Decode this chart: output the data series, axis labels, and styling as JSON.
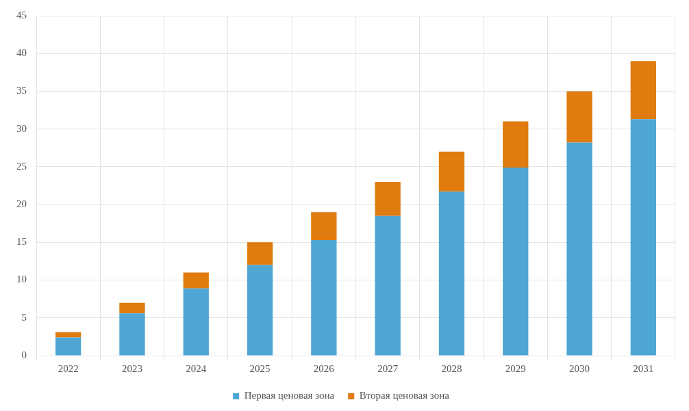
{
  "chart_data": {
    "type": "bar",
    "stacked": true,
    "categories": [
      "2022",
      "2023",
      "2024",
      "2025",
      "2026",
      "2027",
      "2028",
      "2029",
      "2030",
      "2031"
    ],
    "series": [
      {
        "name": "Первая ценовая зона",
        "color": "#4ea6d4",
        "values": [
          2.4,
          5.6,
          8.9,
          12.0,
          15.3,
          18.5,
          21.7,
          24.9,
          28.2,
          31.3
        ]
      },
      {
        "name": "Вторая ценовая зона",
        "color": "#e07b10",
        "values": [
          0.7,
          1.4,
          2.1,
          3.0,
          3.7,
          4.5,
          5.3,
          6.1,
          6.8,
          7.7
        ]
      }
    ],
    "ylim": [
      0,
      45
    ],
    "yticks": [
      0,
      5,
      10,
      15,
      20,
      25,
      30,
      35,
      40,
      45
    ],
    "grid": true,
    "legend": "bottom"
  }
}
